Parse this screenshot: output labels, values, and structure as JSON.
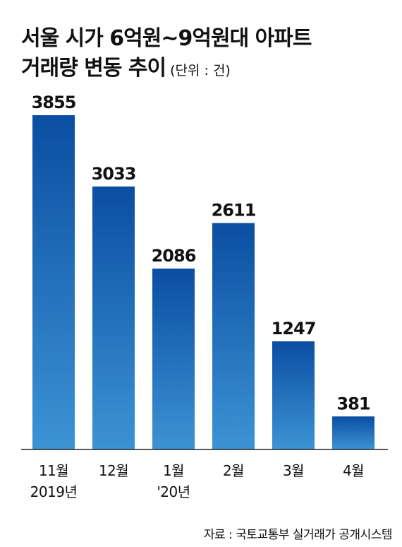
{
  "title": {
    "line1": "서울 시가 6억원~9억원대 아파트",
    "line2": "거래량 변동 추이",
    "unit": "(단위 : 건)"
  },
  "chart_data": {
    "type": "bar",
    "categories": [
      [
        "11월",
        "2019년"
      ],
      [
        "12월"
      ],
      [
        "1월",
        "'20년"
      ],
      [
        "2월"
      ],
      [
        "3월"
      ],
      [
        "4월"
      ]
    ],
    "values": [
      3855,
      3033,
      2086,
      2611,
      1247,
      381
    ],
    "data_labels": [
      "3855",
      "3033",
      "2086",
      "2611",
      "1247",
      "381"
    ],
    "ylim": [
      0,
      3855
    ],
    "grid": false,
    "colors": {
      "bar_top": "#0b4ea2",
      "bar_bottom": "#3c93d4"
    }
  },
  "source": "자료 : 국토교통부 실거래가 공개시스템"
}
